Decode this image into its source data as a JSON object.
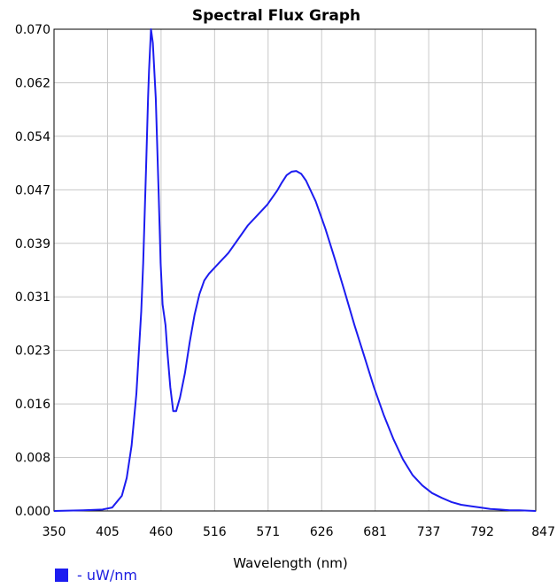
{
  "chart_data": {
    "type": "line",
    "title": "Spectral Flux Graph",
    "xlabel": "Wavelength (nm)",
    "ylabel": "",
    "xlim": [
      350,
      847
    ],
    "ylim": [
      0,
      0.07
    ],
    "x_ticks": [
      "350",
      "405",
      "460",
      "516",
      "571",
      "626",
      "681",
      "737",
      "792",
      "847"
    ],
    "y_ticks": [
      "0.000",
      "0.008",
      "0.016",
      "0.023",
      "0.031",
      "0.039",
      "0.047",
      "0.054",
      "0.062",
      "0.070"
    ],
    "grid": true,
    "legend_position": "bottom-left",
    "series": [
      {
        "name": "uW/nm",
        "color": "#1c1cf0",
        "x": [
          350,
          380,
          400,
          410,
          420,
          425,
          430,
          435,
          440,
          442,
          445,
          447,
          448,
          450,
          452,
          455,
          458,
          460,
          462,
          465,
          467,
          470,
          473,
          476,
          480,
          485,
          490,
          495,
          500,
          505,
          510,
          520,
          530,
          540,
          550,
          560,
          570,
          580,
          585,
          590,
          595,
          600,
          605,
          610,
          620,
          630,
          640,
          650,
          660,
          670,
          680,
          690,
          700,
          710,
          720,
          730,
          740,
          750,
          760,
          770,
          780,
          790,
          800,
          810,
          820,
          830,
          847
        ],
        "y": [
          0.0,
          0.0001,
          0.0002,
          0.0005,
          0.0022,
          0.0048,
          0.0095,
          0.017,
          0.029,
          0.036,
          0.05,
          0.06,
          0.064,
          0.07,
          0.068,
          0.06,
          0.046,
          0.036,
          0.03,
          0.027,
          0.023,
          0.018,
          0.0145,
          0.0145,
          0.0165,
          0.02,
          0.0245,
          0.0285,
          0.0315,
          0.0335,
          0.0345,
          0.036,
          0.0375,
          0.0395,
          0.0415,
          0.043,
          0.0445,
          0.0465,
          0.0477,
          0.0488,
          0.0493,
          0.0494,
          0.049,
          0.048,
          0.045,
          0.041,
          0.0365,
          0.0318,
          0.027,
          0.0225,
          0.018,
          0.014,
          0.0105,
          0.0075,
          0.0052,
          0.0037,
          0.0026,
          0.0019,
          0.0013,
          0.0009,
          0.0007,
          0.0005,
          0.0003,
          0.0002,
          0.0001,
          0.0001,
          0.0
        ]
      }
    ]
  },
  "legend": {
    "label": "- uW/nm",
    "color": "#1c1cf0"
  }
}
